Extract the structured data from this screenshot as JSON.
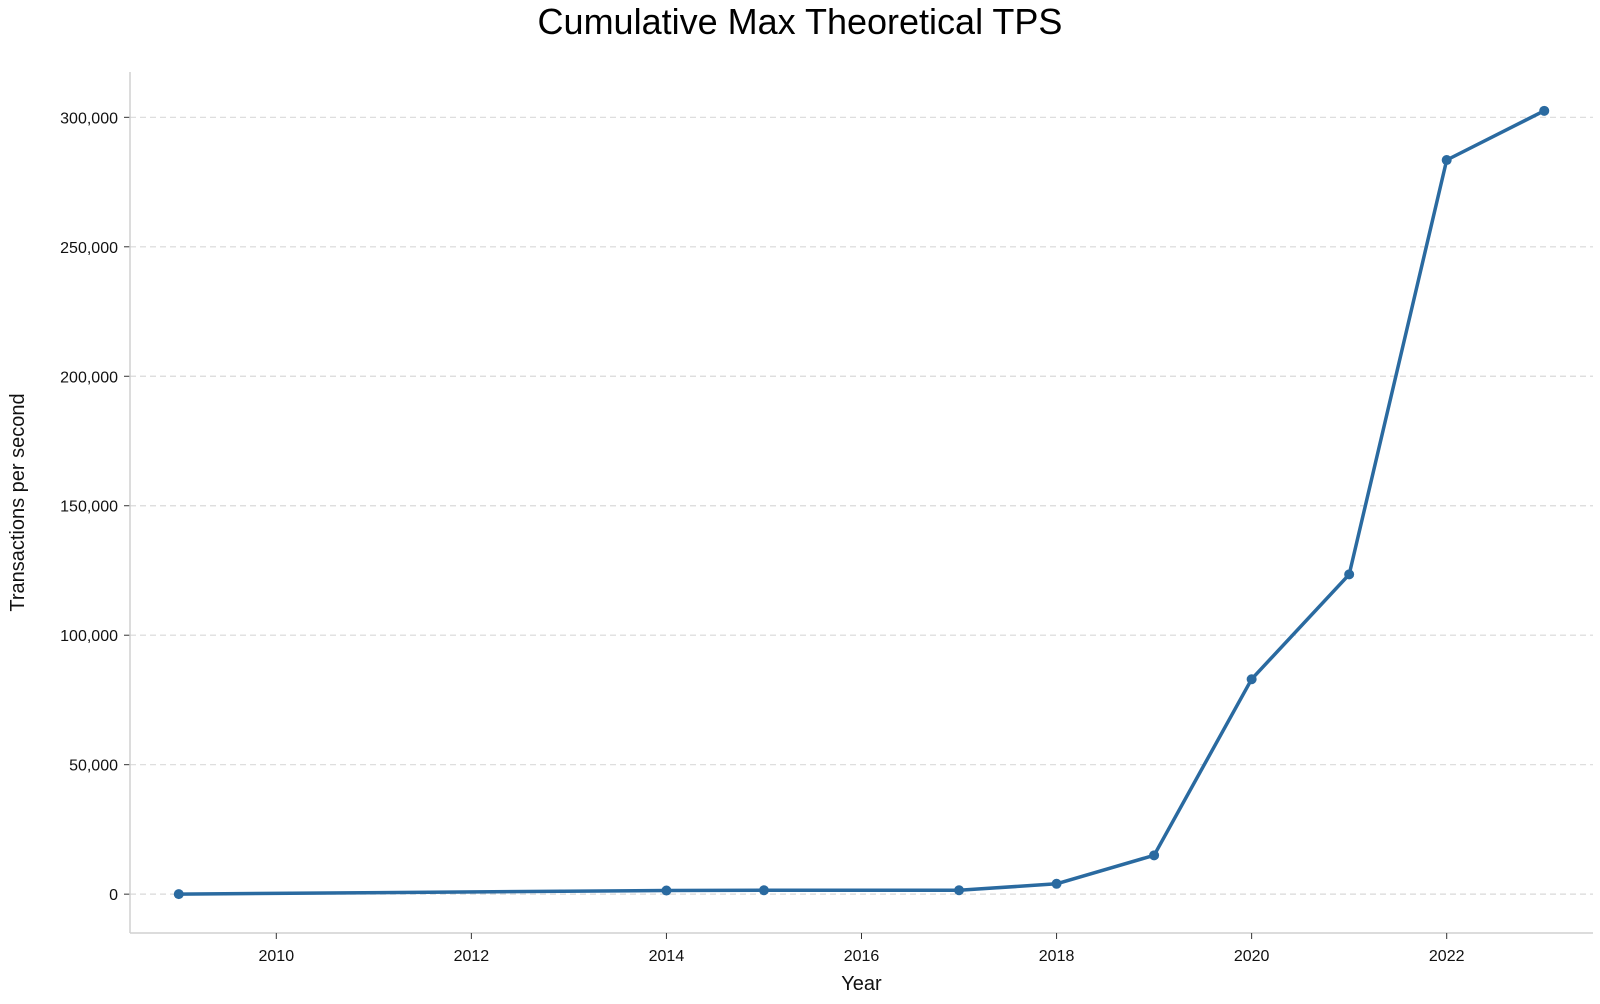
{
  "chart_data": {
    "type": "line",
    "title": "Cumulative Max Theoretical TPS",
    "xlabel": "Year",
    "ylabel": "Transactions per second",
    "x": [
      2009,
      2014,
      2015,
      2017,
      2018,
      2019,
      2020,
      2021,
      2022,
      2023
    ],
    "series": [
      {
        "values": [
          7,
          1400,
          1500,
          1500,
          4000,
          15000,
          83000,
          123500,
          283500,
          302500
        ]
      }
    ],
    "xticks": [
      2010,
      2012,
      2014,
      2016,
      2018,
      2020,
      2022
    ],
    "xtick_labels": [
      "2010",
      "2012",
      "2014",
      "2016",
      "2018",
      "2020",
      "2022"
    ],
    "yticks": [
      0,
      50000,
      100000,
      150000,
      200000,
      250000,
      300000
    ],
    "ytick_labels": [
      "0",
      "50,000",
      "100,000",
      "150,000",
      "200,000",
      "250,000",
      "300,000"
    ],
    "xlim": [
      2008.5,
      2023.5
    ],
    "ylim": [
      -15000,
      317500
    ],
    "grid": "horizontal dashed",
    "colors": {
      "line": "#2a6aa0",
      "grid": "#d9d9d9",
      "axis": "#d0d0d0"
    }
  }
}
